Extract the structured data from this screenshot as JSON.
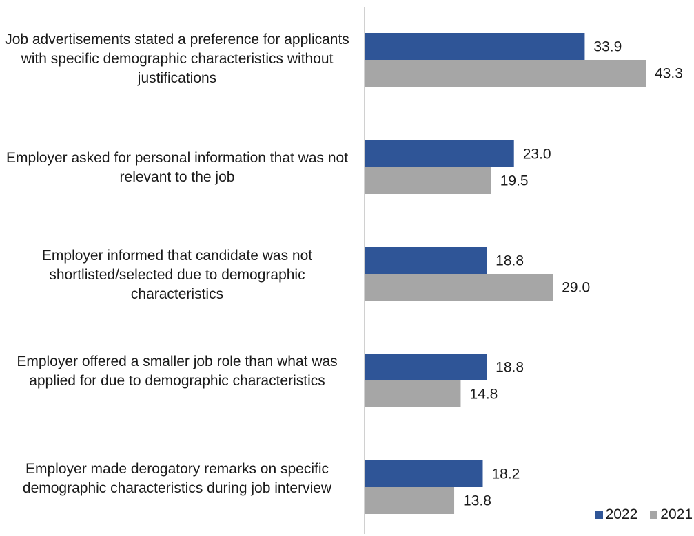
{
  "chart_data": {
    "type": "bar",
    "orientation": "horizontal",
    "categories": [
      "Job advertisements stated a preference for applicants with specific demographic characteristics without justifications",
      "Employer asked for personal information that was not relevant to the job",
      "Employer informed that candidate was not shortlisted/selected due to demographic characteristics",
      "Employer offered a smaller job role than what was applied for due to demographic characteristics",
      "Employer made derogatory remarks on specific demographic characteristics during job interview"
    ],
    "series": [
      {
        "name": "2022",
        "color": "#2f5597",
        "values": [
          33.9,
          23.0,
          18.8,
          18.8,
          18.2
        ],
        "labels": [
          "33.9",
          "23.0",
          "18.8",
          "18.8",
          "18.2"
        ]
      },
      {
        "name": "2021",
        "color": "#a6a6a6",
        "values": [
          43.3,
          19.5,
          29.0,
          14.8,
          13.8
        ],
        "labels": [
          "43.3",
          "19.5",
          "29.0",
          "14.8",
          "13.8"
        ]
      }
    ],
    "xlim": [
      0,
      45
    ],
    "grid": false,
    "legend_position": "bottom-right"
  }
}
